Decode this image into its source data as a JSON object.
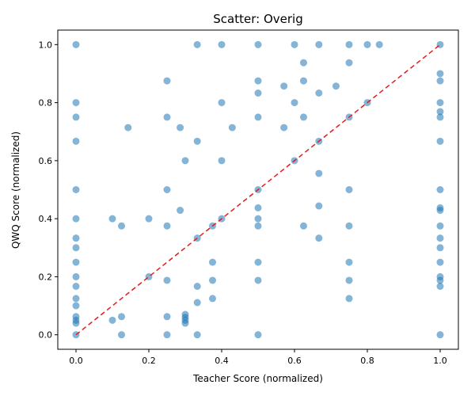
{
  "chart_data": {
    "type": "scatter",
    "title": "Scatter: Overig",
    "xlabel": "Teacher Score (normalized)",
    "ylabel": "QWQ Score (normalized)",
    "xlim": [
      -0.05,
      1.05
    ],
    "ylim": [
      -0.05,
      1.05
    ],
    "xticks": [
      "0.0",
      "0.2",
      "0.4",
      "0.6",
      "0.8",
      "1.0"
    ],
    "yticks": [
      "0.0",
      "0.2",
      "0.4",
      "0.6",
      "0.8",
      "1.0"
    ],
    "grid": false,
    "legend": "none",
    "point_color": "#1f77b4",
    "reference_line": {
      "x": [
        0,
        1
      ],
      "y": [
        0,
        1
      ],
      "color": "#e41a1c",
      "style": "dashed"
    },
    "points": [
      [
        0,
        1
      ],
      [
        0,
        0.8
      ],
      [
        0,
        0.75
      ],
      [
        0,
        0.667
      ],
      [
        0,
        0.5
      ],
      [
        0,
        0.4
      ],
      [
        0,
        0.333
      ],
      [
        0,
        0.3
      ],
      [
        0,
        0.25
      ],
      [
        0,
        0.2
      ],
      [
        0,
        0.167
      ],
      [
        0,
        0.125
      ],
      [
        0,
        0.1
      ],
      [
        0,
        0.0625
      ],
      [
        0,
        0.05
      ],
      [
        0,
        0.04
      ],
      [
        0,
        0
      ],
      [
        0.1,
        0.4
      ],
      [
        0.1,
        0.05
      ],
      [
        0.125,
        0.375
      ],
      [
        0.125,
        0.0625
      ],
      [
        0.125,
        0
      ],
      [
        0.143,
        0.714
      ],
      [
        0.2,
        0.4
      ],
      [
        0.2,
        0.2
      ],
      [
        0.25,
        0.875
      ],
      [
        0.25,
        0.75
      ],
      [
        0.25,
        0.5
      ],
      [
        0.25,
        0.375
      ],
      [
        0.25,
        0.1875
      ],
      [
        0.25,
        0.0625
      ],
      [
        0.25,
        0
      ],
      [
        0.286,
        0.714
      ],
      [
        0.286,
        0.429
      ],
      [
        0.3,
        0.6
      ],
      [
        0.3,
        0.07
      ],
      [
        0.3,
        0.06
      ],
      [
        0.3,
        0.05
      ],
      [
        0.3,
        0.04
      ],
      [
        0.333,
        1
      ],
      [
        0.333,
        0.667
      ],
      [
        0.333,
        0.333
      ],
      [
        0.333,
        0.167
      ],
      [
        0.333,
        0.111
      ],
      [
        0.333,
        0
      ],
      [
        0.375,
        0.375
      ],
      [
        0.375,
        0.25
      ],
      [
        0.375,
        0.1875
      ],
      [
        0.375,
        0.125
      ],
      [
        0.4,
        1
      ],
      [
        0.4,
        0.8
      ],
      [
        0.4,
        0.6
      ],
      [
        0.4,
        0.4
      ],
      [
        0.429,
        0.714
      ],
      [
        0.5,
        1
      ],
      [
        0.5,
        0.875
      ],
      [
        0.5,
        0.833
      ],
      [
        0.5,
        0.75
      ],
      [
        0.5,
        0.5
      ],
      [
        0.5,
        0.4375
      ],
      [
        0.5,
        0.4
      ],
      [
        0.5,
        0.375
      ],
      [
        0.5,
        0.25
      ],
      [
        0.5,
        0.1875
      ],
      [
        0.5,
        0
      ],
      [
        0.571,
        0.857
      ],
      [
        0.571,
        0.714
      ],
      [
        0.6,
        1
      ],
      [
        0.6,
        0.8
      ],
      [
        0.6,
        0.6
      ],
      [
        0.625,
        0.9375
      ],
      [
        0.625,
        0.875
      ],
      [
        0.625,
        0.75
      ],
      [
        0.625,
        0.375
      ],
      [
        0.667,
        1
      ],
      [
        0.667,
        0.833
      ],
      [
        0.667,
        0.667
      ],
      [
        0.667,
        0.556
      ],
      [
        0.667,
        0.444
      ],
      [
        0.667,
        0.333
      ],
      [
        0.714,
        0.857
      ],
      [
        0.75,
        1
      ],
      [
        0.75,
        0.9375
      ],
      [
        0.75,
        0.75
      ],
      [
        0.75,
        0.5
      ],
      [
        0.75,
        0.375
      ],
      [
        0.75,
        0.25
      ],
      [
        0.75,
        0.1875
      ],
      [
        0.75,
        0.125
      ],
      [
        0.8,
        1
      ],
      [
        0.8,
        0.8
      ],
      [
        0.833,
        1
      ],
      [
        1,
        1
      ],
      [
        1,
        0.9
      ],
      [
        1,
        0.875
      ],
      [
        1,
        0.8
      ],
      [
        1,
        0.769
      ],
      [
        1,
        0.75
      ],
      [
        1,
        0.667
      ],
      [
        1,
        0.5
      ],
      [
        1,
        0.4375
      ],
      [
        1,
        0.429
      ],
      [
        1,
        0.375
      ],
      [
        1,
        0.333
      ],
      [
        1,
        0.3
      ],
      [
        1,
        0.25
      ],
      [
        1,
        0.2
      ],
      [
        1,
        0.1875
      ],
      [
        1,
        0.167
      ],
      [
        1,
        0
      ]
    ]
  }
}
